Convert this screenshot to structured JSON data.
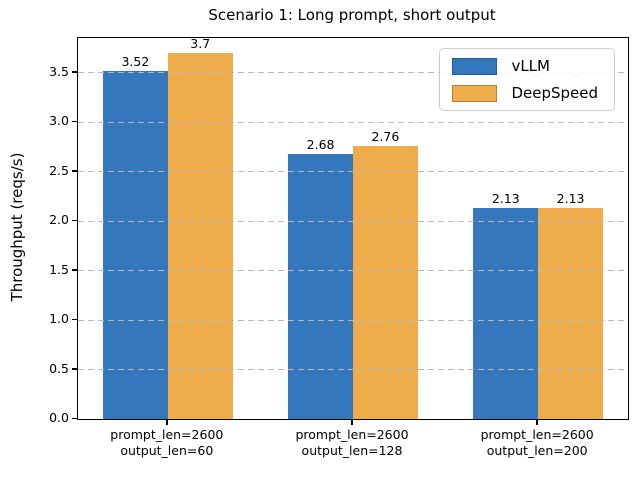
{
  "chart_data": {
    "type": "bar",
    "title": "Scenario 1: Long prompt, short output",
    "xlabel": "",
    "ylabel": "Throughput (reqs/s)",
    "categories": [
      [
        "prompt_len=2600",
        "output_len=60"
      ],
      [
        "prompt_len=2600",
        "output_len=128"
      ],
      [
        "prompt_len=2600",
        "output_len=200"
      ]
    ],
    "series": [
      {
        "name": "vLLM",
        "color": "#3577bc",
        "values": [
          3.52,
          2.68,
          2.13
        ],
        "labels": [
          "3.52",
          "2.68",
          "2.13"
        ]
      },
      {
        "name": "DeepSpeed",
        "color": "#eeac4a",
        "values": [
          3.7,
          2.76,
          2.13
        ],
        "labels": [
          "3.7",
          "2.76",
          "2.13"
        ]
      }
    ],
    "ylim": [
      0,
      3.85
    ],
    "yticks": [
      0.0,
      0.5,
      1.0,
      1.5,
      2.0,
      2.5,
      3.0,
      3.5
    ],
    "ytick_labels": [
      "0.0",
      "0.5",
      "1.0",
      "1.5",
      "2.0",
      "2.5",
      "3.0",
      "3.5"
    ],
    "grid": "horizontal dashed, drawn above bars",
    "legend_position": "upper right",
    "colors": {
      "grid": "#b9b9b9",
      "spine": "#000000",
      "legend_border": "#cccccc"
    }
  }
}
